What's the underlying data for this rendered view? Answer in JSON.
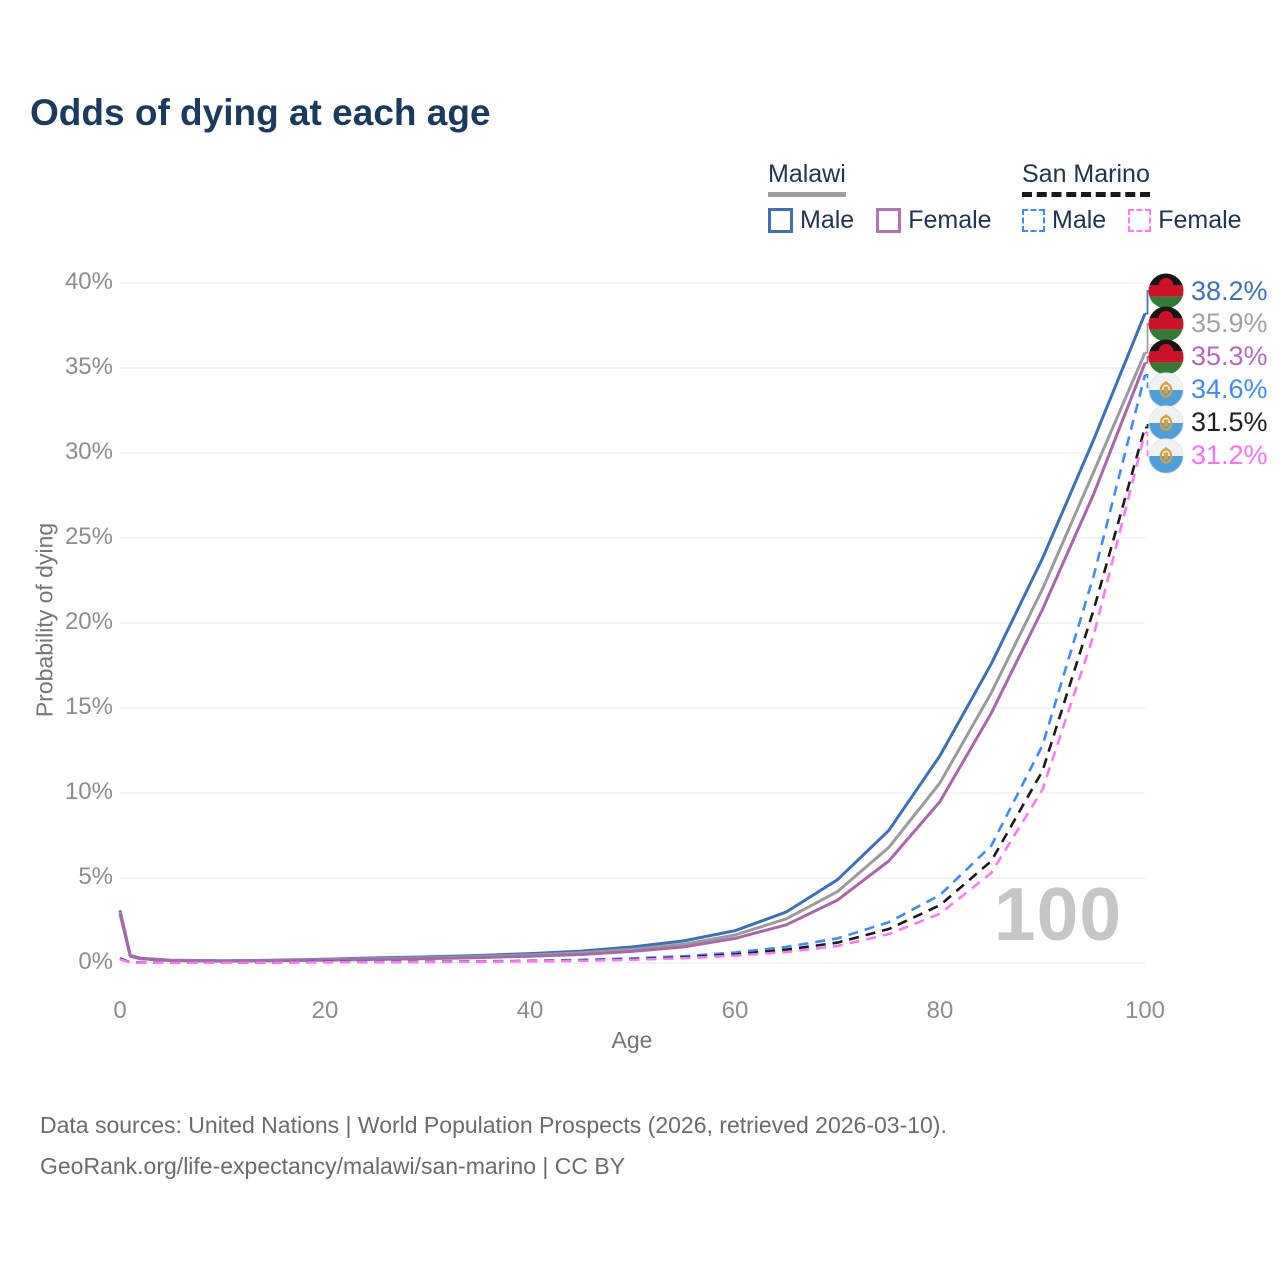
{
  "title": "Odds of dying at each age",
  "legend": {
    "groups": [
      {
        "country": "Malawi",
        "line_style": "solid",
        "underline_color": "#9e9e9e",
        "items": [
          {
            "label": "Male",
            "color": "#3e6fb7"
          },
          {
            "label": "Female",
            "color": "#b173b4"
          }
        ]
      },
      {
        "country": "San Marino",
        "line_style": "dashed",
        "underline_color": "#1a1a1a",
        "items": [
          {
            "label": "Male",
            "color": "#4289f5"
          },
          {
            "label": "Female",
            "color": "#fb7cf0"
          }
        ]
      }
    ]
  },
  "watermark": "100",
  "footer": {
    "line1": "Data sources: United Nations | World Population Prospects (2026, retrieved 2026-03-10).",
    "line2": "GeoRank.org/life-expectancy/malawi/san-marino | CC BY"
  },
  "chart_data": {
    "type": "line",
    "title": "Odds of dying at each age",
    "xlabel": "Age",
    "ylabel": "Probability of dying",
    "xlim": [
      0,
      100
    ],
    "ylim": [
      0,
      40
    ],
    "grid": "horizontal",
    "legend_position": "top-right",
    "xticks": [
      "0",
      "20",
      "40",
      "60",
      "80",
      "100"
    ],
    "xtick_values": [
      0,
      20,
      40,
      60,
      80,
      100
    ],
    "yticks": [
      "0%",
      "5%",
      "10%",
      "15%",
      "20%",
      "25%",
      "30%",
      "35%",
      "40%"
    ],
    "x": [
      0,
      1,
      2,
      5,
      10,
      15,
      20,
      25,
      30,
      35,
      40,
      45,
      50,
      55,
      60,
      65,
      70,
      75,
      80,
      85,
      90,
      95,
      100
    ],
    "series": [
      {
        "id": "malawi-male",
        "name": "Malawi Male",
        "color": "#3e6fb7",
        "dashed": false,
        "flag": "malawi-flag-icon",
        "end_label": "38.2%",
        "label_color": "#3e6fb7",
        "values": [
          3.1,
          0.45,
          0.28,
          0.16,
          0.13,
          0.16,
          0.22,
          0.3,
          0.36,
          0.44,
          0.55,
          0.7,
          0.95,
          1.3,
          1.9,
          3.0,
          4.9,
          7.8,
          12.2,
          17.6,
          23.8,
          30.8,
          38.2
        ]
      },
      {
        "id": "malawi-all",
        "name": "Malawi Both sexes",
        "color": "#9b9b9b",
        "dashed": false,
        "flag": "malawi-flag-icon",
        "end_label": "35.9%",
        "label_color": "#a2a2a2",
        "values": [
          3.0,
          0.42,
          0.26,
          0.15,
          0.12,
          0.14,
          0.19,
          0.26,
          0.31,
          0.38,
          0.47,
          0.6,
          0.8,
          1.1,
          1.65,
          2.6,
          4.2,
          6.8,
          10.6,
          15.9,
          22.0,
          28.9,
          35.9
        ]
      },
      {
        "id": "malawi-female",
        "name": "Malawi Female",
        "color": "#a768aa",
        "dashed": false,
        "flag": "malawi-flag-icon",
        "end_label": "35.3%",
        "label_color": "#b56ab5",
        "values": [
          2.9,
          0.4,
          0.25,
          0.14,
          0.11,
          0.13,
          0.16,
          0.21,
          0.26,
          0.32,
          0.4,
          0.5,
          0.68,
          0.95,
          1.45,
          2.25,
          3.7,
          6.0,
          9.5,
          14.7,
          20.8,
          27.6,
          35.3
        ]
      },
      {
        "id": "san-marino-male",
        "name": "San Marino Male",
        "color": "#4289f5",
        "dashed": true,
        "flag": "san-marino-flag-icon",
        "end_label": "34.6%",
        "label_color": "#4289f5",
        "values": [
          0.28,
          0.04,
          0.03,
          0.02,
          0.02,
          0.04,
          0.06,
          0.07,
          0.08,
          0.1,
          0.13,
          0.18,
          0.27,
          0.4,
          0.62,
          0.95,
          1.45,
          2.4,
          4.0,
          6.9,
          12.8,
          22.8,
          34.6
        ]
      },
      {
        "id": "san-marino-all",
        "name": "San Marino Both sexes",
        "color": "#1a1a1a",
        "dashed": true,
        "flag": "san-marino-flag-icon",
        "end_label": "31.5%",
        "label_color": "#1f1f1f",
        "values": [
          0.24,
          0.035,
          0.025,
          0.017,
          0.017,
          0.033,
          0.05,
          0.06,
          0.07,
          0.09,
          0.11,
          0.15,
          0.22,
          0.33,
          0.5,
          0.78,
          1.2,
          2.0,
          3.4,
          6.0,
          11.3,
          20.8,
          31.5
        ]
      },
      {
        "id": "san-marino-female",
        "name": "San Marino Female",
        "color": "#f87bef",
        "dashed": true,
        "flag": "san-marino-flag-icon",
        "end_label": "31.2%",
        "label_color": "#fb72ee",
        "values": [
          0.21,
          0.03,
          0.02,
          0.015,
          0.015,
          0.028,
          0.04,
          0.05,
          0.06,
          0.08,
          0.1,
          0.13,
          0.19,
          0.28,
          0.43,
          0.65,
          1.0,
          1.7,
          2.9,
          5.3,
          10.2,
          19.3,
          31.2
        ]
      }
    ]
  }
}
